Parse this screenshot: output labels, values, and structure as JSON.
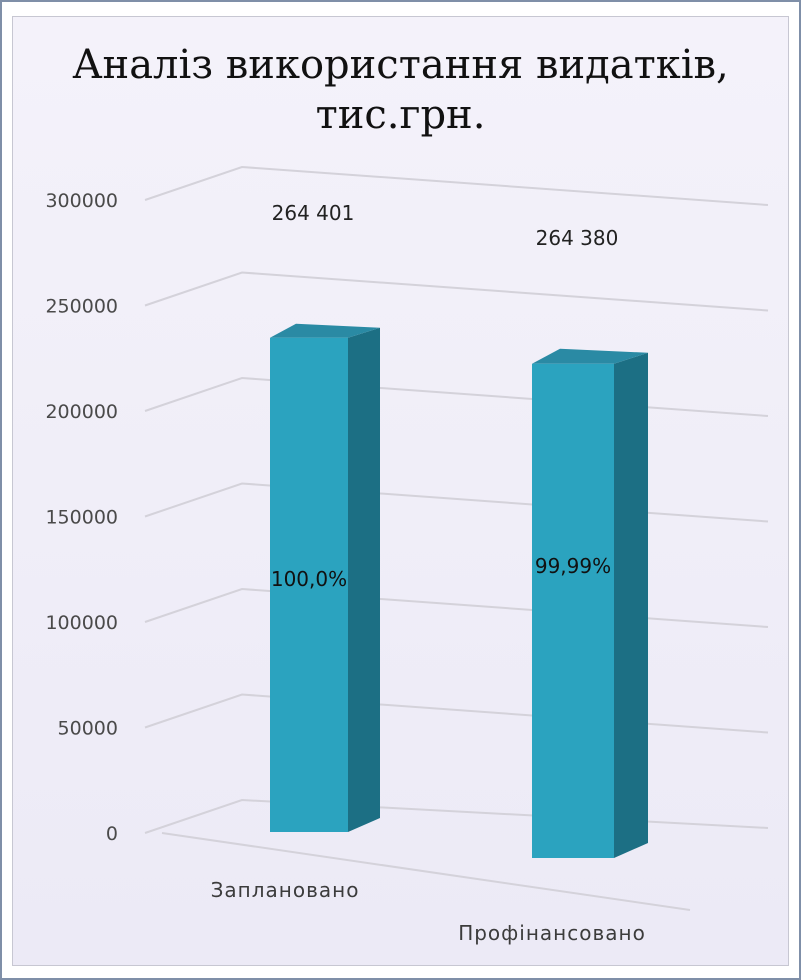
{
  "chart_data": {
    "type": "bar",
    "title": "Аналіз використання видатків, тис.грн.",
    "title_lines": [
      "Аналіз використання видатків,",
      "тис.грн."
    ],
    "categories": [
      "Заплановано",
      "Профінансовано"
    ],
    "values": [
      264401,
      264380
    ],
    "value_labels": [
      "264 401",
      "264 380"
    ],
    "percent_labels": [
      "100,0%",
      "99,99%"
    ],
    "ylim": [
      0,
      300000
    ],
    "yticks": [
      0,
      50000,
      100000,
      150000,
      200000,
      250000,
      300000
    ],
    "ytick_labels": [
      "0",
      "50000",
      "100000",
      "150000",
      "200000",
      "250000",
      "300000"
    ],
    "grid": true,
    "legend": "none",
    "style": "3d-column",
    "colors": {
      "bar_front": "#2ba3bf",
      "bar_side": "#1c6f84",
      "bar_top": "#2a8aa4",
      "background": "#f1eff8",
      "gridline": "#d4d2da"
    }
  }
}
